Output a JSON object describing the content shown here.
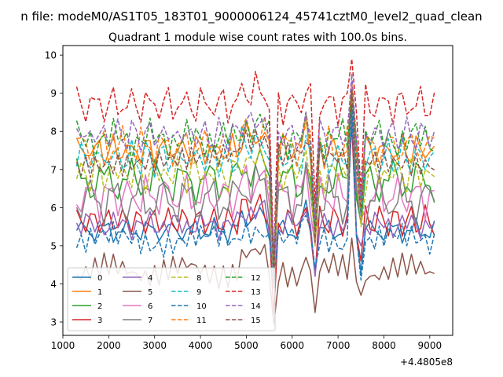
{
  "suptitle": "n file: modeM0/AS1T05_183T01_9000006124_45741cztM0_level2_quad_clean",
  "chart_data": {
    "type": "line",
    "title": "Quadrant 1 module wise count rates with 100.0s bins.",
    "xlabel": "",
    "ylabel": "",
    "x_offset_label": "+4.4805e8",
    "xlim": [
      1000,
      9500
    ],
    "ylim": [
      2.65,
      10.25
    ],
    "x_ticks": [
      1000,
      2000,
      3000,
      4000,
      5000,
      6000,
      7000,
      8000,
      9000
    ],
    "y_ticks": [
      3,
      4,
      5,
      6,
      7,
      8,
      9,
      10
    ],
    "x_tick_labels": [
      "1000",
      "2000",
      "3000",
      "4000",
      "5000",
      "6000",
      "7000",
      "8000",
      "9000"
    ],
    "y_tick_labels": [
      "3",
      "4",
      "5",
      "6",
      "7",
      "8",
      "9",
      "10"
    ],
    "grid": false,
    "legend_position": "lower-left",
    "x": [
      1300,
      1400,
      1500,
      1600,
      1700,
      1800,
      1900,
      2000,
      2100,
      2200,
      2300,
      2400,
      2500,
      2600,
      2700,
      2800,
      2900,
      3000,
      3100,
      3200,
      3300,
      3400,
      3500,
      3600,
      3700,
      3800,
      3900,
      4000,
      4100,
      4200,
      4300,
      4400,
      4500,
      4600,
      4700,
      4800,
      4900,
      5000,
      5100,
      5200,
      5300,
      5400,
      5500,
      5600,
      5700,
      5800,
      5900,
      6000,
      6100,
      6200,
      6300,
      6400,
      6500,
      6600,
      6700,
      6800,
      6900,
      7000,
      7100,
      7200,
      7300,
      7400,
      7500,
      7600,
      7700,
      7800,
      7900,
      8000,
      8100,
      8200,
      8300,
      8400,
      8500,
      8600,
      8700,
      8800,
      8900,
      9000,
      9100
    ],
    "series": [
      {
        "name": "0",
        "color": "#1f77b4",
        "dash": "solid",
        "base": 5.4,
        "amp": 0.22,
        "k": 1.3,
        "ph": 0.0
      },
      {
        "name": "1",
        "color": "#ff7f0e",
        "dash": "solid",
        "base": 7.5,
        "amp": 0.3,
        "k": 1.7,
        "ph": 0.6
      },
      {
        "name": "2",
        "color": "#2ca02c",
        "dash": "solid",
        "base": 6.7,
        "amp": 0.4,
        "k": 1.1,
        "ph": 1.2
      },
      {
        "name": "3",
        "color": "#d62728",
        "dash": "solid",
        "base": 5.65,
        "amp": 0.28,
        "k": 1.9,
        "ph": 1.8
      },
      {
        "name": "4",
        "color": "#9467bd",
        "dash": "solid",
        "base": 5.55,
        "amp": 0.25,
        "k": 2.3,
        "ph": 2.4
      },
      {
        "name": "5",
        "color": "#8c564b",
        "dash": "solid",
        "base": 4.35,
        "amp": 0.3,
        "k": 2.9,
        "ph": 3.0
      },
      {
        "name": "6",
        "color": "#e377c2",
        "dash": "solid",
        "base": 6.3,
        "amp": 0.4,
        "k": 1.5,
        "ph": 3.6
      },
      {
        "name": "7",
        "color": "#7f7f7f",
        "dash": "solid",
        "base": 6.2,
        "amp": 0.45,
        "k": 1.2,
        "ph": 4.2
      },
      {
        "name": "8",
        "color": "#bcbd22",
        "dash": "dashed",
        "base": 6.9,
        "amp": 0.35,
        "k": 2.1,
        "ph": 4.8
      },
      {
        "name": "9",
        "color": "#17becf",
        "dash": "dashed",
        "base": 7.3,
        "amp": 0.35,
        "k": 1.8,
        "ph": 5.4
      },
      {
        "name": "10",
        "color": "#1f77b4",
        "dash": "dashed",
        "base": 5.15,
        "amp": 0.3,
        "k": 2.6,
        "ph": 6.0
      },
      {
        "name": "11",
        "color": "#ff7f0e",
        "dash": "dashed",
        "base": 7.6,
        "amp": 0.35,
        "k": 1.4,
        "ph": 0.3
      },
      {
        "name": "12",
        "color": "#2ca02c",
        "dash": "dashed",
        "base": 7.8,
        "amp": 0.35,
        "k": 2.4,
        "ph": 0.9
      },
      {
        "name": "13",
        "color": "#d62728",
        "dash": "dashed",
        "base": 8.7,
        "amp": 0.35,
        "k": 1.6,
        "ph": 1.5
      },
      {
        "name": "14",
        "color": "#9467bd",
        "dash": "dashed",
        "base": 7.9,
        "amp": 0.3,
        "k": 2.0,
        "ph": 2.1
      },
      {
        "name": "15",
        "color": "#8c564b",
        "dash": "dashed",
        "base": 7.25,
        "amp": 0.3,
        "k": 2.7,
        "ph": 2.7
      }
    ],
    "dips": [
      {
        "x": 5600,
        "values": [
          4.6,
          4.5,
          4.6,
          3.2,
          4.2,
          2.95,
          3.9,
          4.3,
          4.0,
          4.2,
          3.9,
          4.6,
          4.4,
          4.6,
          4.5,
          4.1
        ]
      },
      {
        "x": 6500,
        "values": [
          4.3,
          5.3,
          5.2,
          4.2,
          4.2,
          3.25,
          5.0,
          5.3,
          5.0,
          5.5,
          4.4,
          5.6,
          5.5,
          6.1,
          5.7,
          5.1
        ]
      },
      {
        "x": 7500,
        "values": [
          4.3,
          5.6,
          5.6,
          4.6,
          5.0,
          3.7,
          5.7,
          5.6,
          5.5,
          5.8,
          4.1,
          6.0,
          6.2,
          6.4,
          6.2,
          5.9
        ]
      }
    ],
    "peaks": [
      {
        "x": 7300,
        "values": [
          8.9,
          9.3,
          9.1,
          8.2,
          8.6,
          5.2,
          8.9,
          9.0,
          8.8,
          8.7,
          8.7,
          9.1,
          9.0,
          9.9,
          9.5,
          9.1
        ]
      },
      {
        "x": 6300,
        "values": [
          6.2,
          8.4,
          7.1,
          6.0,
          5.9,
          4.7,
          7.0,
          7.2,
          7.5,
          7.9,
          5.8,
          8.2,
          8.5,
          9.0,
          8.5,
          7.7
        ]
      }
    ]
  }
}
